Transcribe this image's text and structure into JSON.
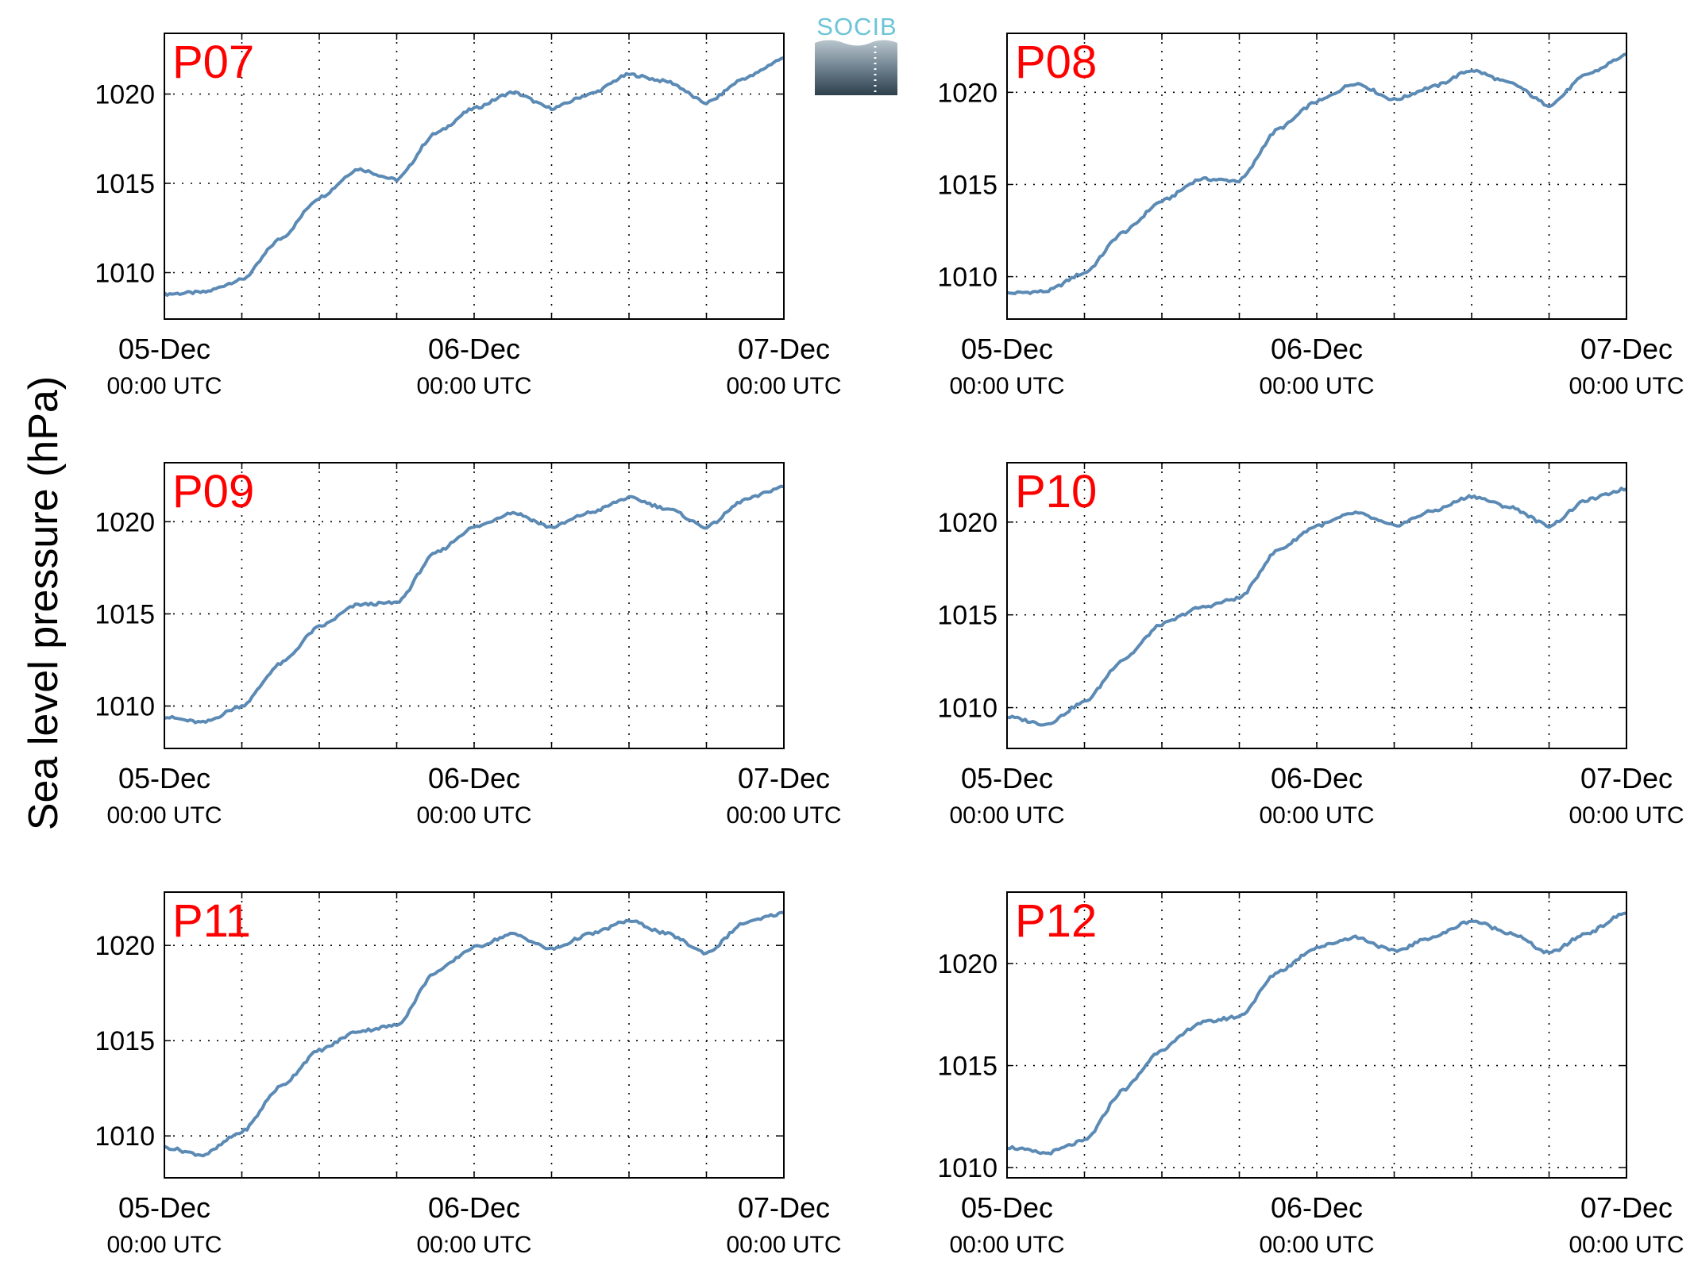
{
  "figure": {
    "ylabel": "Sea level pressure (hPa)",
    "logo_text": "SOCIB",
    "line_color": "#5b8ab5",
    "label_color": "#ff0000",
    "grid": true
  },
  "chart_data": [
    {
      "type": "line",
      "label": "P07",
      "x": [
        "05-Dec 00:00",
        "05-Dec 03:00",
        "05-Dec 06:00",
        "05-Dec 09:00",
        "05-Dec 12:00",
        "05-Dec 15:00",
        "05-Dec 18:00",
        "05-Dec 21:00",
        "06-Dec 00:00",
        "06-Dec 03:00",
        "06-Dec 06:00",
        "06-Dec 09:00",
        "06-Dec 12:00",
        "06-Dec 15:00",
        "06-Dec 18:00",
        "06-Dec 21:00",
        "07-Dec 00:00"
      ],
      "values": [
        1008.8,
        1008.9,
        1009.6,
        1011.9,
        1014.2,
        1015.8,
        1015.2,
        1017.8,
        1019.2,
        1020.1,
        1019.2,
        1020.0,
        1021.1,
        1020.7,
        1019.5,
        1020.9,
        1022.0
      ],
      "ylim": [
        1007.4,
        1023.4
      ],
      "yticks": [
        1010,
        1015,
        1020
      ],
      "xticks": [
        "05-Dec",
        "06-Dec",
        "07-Dec"
      ],
      "xticks_sub": [
        "00:00 UTC",
        "00:00 UTC",
        "00:00 UTC"
      ]
    },
    {
      "type": "line",
      "label": "P08",
      "x": [
        "05-Dec 00:00",
        "05-Dec 03:00",
        "05-Dec 06:00",
        "05-Dec 09:00",
        "05-Dec 12:00",
        "05-Dec 15:00",
        "05-Dec 18:00",
        "05-Dec 21:00",
        "06-Dec 00:00",
        "06-Dec 03:00",
        "06-Dec 06:00",
        "06-Dec 09:00",
        "06-Dec 12:00",
        "06-Dec 15:00",
        "06-Dec 18:00",
        "06-Dec 21:00",
        "07-Dec 00:00"
      ],
      "values": [
        1009.1,
        1009.2,
        1010.2,
        1012.4,
        1014.1,
        1015.3,
        1015.2,
        1018.0,
        1019.5,
        1020.5,
        1019.6,
        1020.3,
        1021.2,
        1020.5,
        1019.3,
        1021.0,
        1022.0
      ],
      "ylim": [
        1007.7,
        1023.2
      ],
      "yticks": [
        1010,
        1015,
        1020
      ],
      "xticks": [
        "05-Dec",
        "06-Dec",
        "07-Dec"
      ],
      "xticks_sub": [
        "00:00 UTC",
        "00:00 UTC",
        "00:00 UTC"
      ]
    },
    {
      "type": "line",
      "label": "P09",
      "x": [
        "05-Dec 00:00",
        "05-Dec 03:00",
        "05-Dec 06:00",
        "05-Dec 09:00",
        "05-Dec 12:00",
        "05-Dec 15:00",
        "05-Dec 18:00",
        "05-Dec 21:00",
        "06-Dec 00:00",
        "06-Dec 03:00",
        "06-Dec 06:00",
        "06-Dec 09:00",
        "06-Dec 12:00",
        "06-Dec 15:00",
        "06-Dec 18:00",
        "06-Dec 21:00",
        "07-Dec 00:00"
      ],
      "values": [
        1009.4,
        1009.1,
        1010.0,
        1012.3,
        1014.3,
        1015.5,
        1015.6,
        1018.3,
        1019.7,
        1020.5,
        1019.7,
        1020.5,
        1021.3,
        1020.7,
        1019.7,
        1021.2,
        1021.9
      ],
      "ylim": [
        1007.7,
        1023.2
      ],
      "yticks": [
        1010,
        1015,
        1020
      ],
      "xticks": [
        "05-Dec",
        "06-Dec",
        "07-Dec"
      ],
      "xticks_sub": [
        "00:00 UTC",
        "00:00 UTC",
        "00:00 UTC"
      ]
    },
    {
      "type": "line",
      "label": "P10",
      "x": [
        "05-Dec 00:00",
        "05-Dec 03:00",
        "05-Dec 06:00",
        "05-Dec 09:00",
        "05-Dec 12:00",
        "05-Dec 15:00",
        "05-Dec 18:00",
        "05-Dec 21:00",
        "06-Dec 00:00",
        "06-Dec 03:00",
        "06-Dec 06:00",
        "06-Dec 09:00",
        "06-Dec 12:00",
        "06-Dec 15:00",
        "06-Dec 18:00",
        "06-Dec 21:00",
        "07-Dec 00:00"
      ],
      "values": [
        1009.5,
        1009.1,
        1010.3,
        1012.6,
        1014.5,
        1015.4,
        1015.9,
        1018.5,
        1019.8,
        1020.5,
        1019.8,
        1020.6,
        1021.4,
        1020.8,
        1019.8,
        1021.2,
        1021.8
      ],
      "ylim": [
        1007.8,
        1023.2
      ],
      "yticks": [
        1010,
        1015,
        1020
      ],
      "xticks": [
        "05-Dec",
        "06-Dec",
        "07-Dec"
      ],
      "xticks_sub": [
        "00:00 UTC",
        "00:00 UTC",
        "00:00 UTC"
      ]
    },
    {
      "type": "line",
      "label": "P11",
      "x": [
        "05-Dec 00:00",
        "05-Dec 03:00",
        "05-Dec 06:00",
        "05-Dec 09:00",
        "05-Dec 12:00",
        "05-Dec 15:00",
        "05-Dec 18:00",
        "05-Dec 21:00",
        "06-Dec 00:00",
        "06-Dec 03:00",
        "06-Dec 06:00",
        "06-Dec 09:00",
        "06-Dec 12:00",
        "06-Dec 15:00",
        "06-Dec 18:00",
        "06-Dec 21:00",
        "07-Dec 00:00"
      ],
      "values": [
        1009.4,
        1009.0,
        1010.2,
        1012.6,
        1014.5,
        1015.5,
        1015.8,
        1018.6,
        1019.9,
        1020.6,
        1019.8,
        1020.6,
        1021.3,
        1020.6,
        1019.6,
        1021.2,
        1021.7
      ],
      "ylim": [
        1007.8,
        1022.8
      ],
      "yticks": [
        1010,
        1015,
        1020
      ],
      "xticks": [
        "05-Dec",
        "06-Dec",
        "07-Dec"
      ],
      "xticks_sub": [
        "00:00 UTC",
        "00:00 UTC",
        "00:00 UTC"
      ]
    },
    {
      "type": "line",
      "label": "P12",
      "x": [
        "05-Dec 00:00",
        "05-Dec 03:00",
        "05-Dec 06:00",
        "05-Dec 09:00",
        "05-Dec 12:00",
        "05-Dec 15:00",
        "05-Dec 18:00",
        "05-Dec 21:00",
        "06-Dec 00:00",
        "06-Dec 03:00",
        "06-Dec 06:00",
        "06-Dec 09:00",
        "06-Dec 12:00",
        "06-Dec 15:00",
        "06-Dec 18:00",
        "06-Dec 21:00",
        "07-Dec 00:00"
      ],
      "values": [
        1011.0,
        1010.7,
        1011.3,
        1013.8,
        1015.8,
        1017.1,
        1017.4,
        1019.6,
        1020.8,
        1021.3,
        1020.6,
        1021.3,
        1022.1,
        1021.5,
        1020.5,
        1021.5,
        1022.5
      ],
      "ylim": [
        1009.5,
        1023.5
      ],
      "yticks": [
        1010,
        1015,
        1020
      ],
      "xticks": [
        "05-Dec",
        "06-Dec",
        "07-Dec"
      ],
      "xticks_sub": [
        "00:00 UTC",
        "00:00 UTC",
        "00:00 UTC"
      ]
    }
  ]
}
